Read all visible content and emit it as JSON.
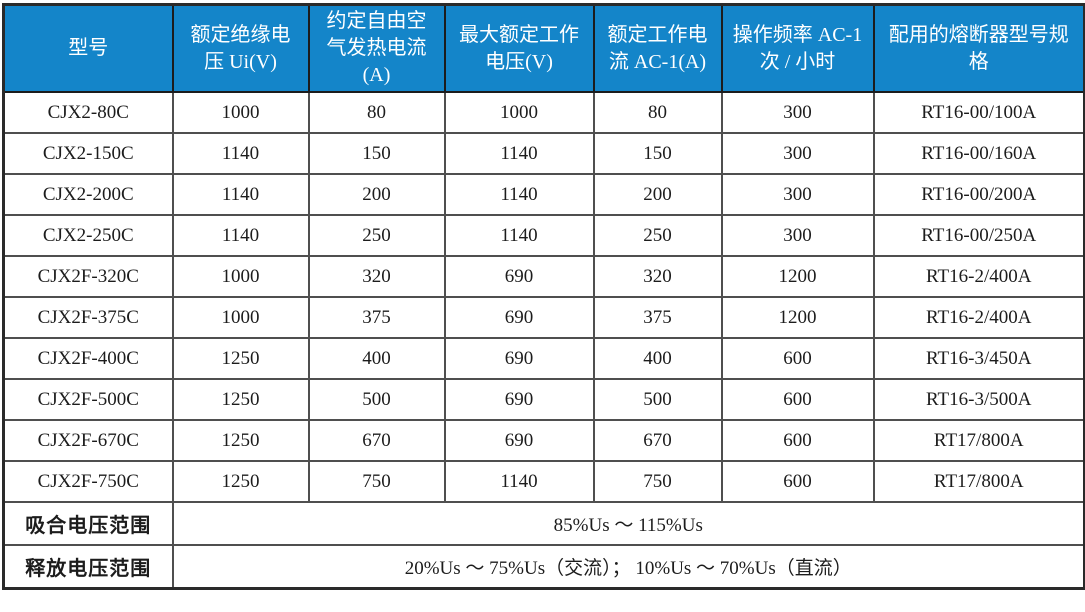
{
  "colors": {
    "header_bg": "#1485c9",
    "header_text": "#ffffff",
    "grid_line": "#4f4f4f",
    "outer_border": "#2a2a2a",
    "body_text": "#1c1c1c",
    "row_bg": "#ffffff"
  },
  "table": {
    "columns": [
      {
        "label": "型号"
      },
      {
        "label": "额定绝缘电压 Ui(V)"
      },
      {
        "label": "约定自由空气发热电流(A)"
      },
      {
        "label": "最大额定工作电压(V)"
      },
      {
        "label": "额定工作电流 AC-1(A)"
      },
      {
        "label": "操作频率 AC-1 次 / 小时"
      },
      {
        "label": "配用的熔断器型号规格"
      }
    ],
    "rows": [
      [
        "CJX2-80C",
        "1000",
        "80",
        "1000",
        "80",
        "300",
        "RT16-00/100A"
      ],
      [
        "CJX2-150C",
        "1140",
        "150",
        "1140",
        "150",
        "300",
        "RT16-00/160A"
      ],
      [
        "CJX2-200C",
        "1140",
        "200",
        "1140",
        "200",
        "300",
        "RT16-00/200A"
      ],
      [
        "CJX2-250C",
        "1140",
        "250",
        "1140",
        "250",
        "300",
        "RT16-00/250A"
      ],
      [
        "CJX2F-320C",
        "1000",
        "320",
        "690",
        "320",
        "1200",
        "RT16-2/400A"
      ],
      [
        "CJX2F-375C",
        "1000",
        "375",
        "690",
        "375",
        "1200",
        "RT16-2/400A"
      ],
      [
        "CJX2F-400C",
        "1250",
        "400",
        "690",
        "400",
        "600",
        "RT16-3/450A"
      ],
      [
        "CJX2F-500C",
        "1250",
        "500",
        "690",
        "500",
        "600",
        "RT16-3/500A"
      ],
      [
        "CJX2F-670C",
        "1250",
        "670",
        "690",
        "670",
        "600",
        "RT17/800A"
      ],
      [
        "CJX2F-750C",
        "1250",
        "750",
        "1140",
        "750",
        "600",
        "RT17/800A"
      ]
    ],
    "footer_rows": [
      {
        "label": "吸合电压范围",
        "value": "85%Us ～ 115%Us"
      },
      {
        "label": "释放电压范围",
        "value": "20%Us ～ 75%Us（交流）； 10%Us ～ 70%Us（直流）"
      }
    ]
  }
}
